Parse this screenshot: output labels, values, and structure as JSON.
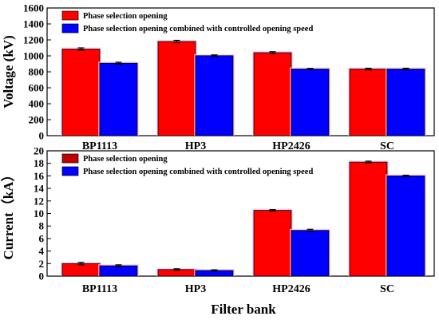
{
  "chart_data": [
    {
      "type": "bar",
      "categories": [
        "BP1113",
        "HP3",
        "HP2426",
        "SC"
      ],
      "series": [
        {
          "name": "Phase selection opening",
          "values": [
            1085,
            1180,
            1040,
            835
          ],
          "errors": [
            15,
            15,
            12,
            10
          ],
          "color": "#ff0000"
        },
        {
          "name": "Phase selection opening combined with controlled opening speed",
          "values": [
            908,
            1002,
            835,
            835
          ],
          "errors": [
            12,
            10,
            8,
            10
          ],
          "color": "#0000ff"
        }
      ],
      "xlabel": "",
      "ylabel": "Voltage (kV)",
      "ylim": [
        0,
        1600
      ],
      "yticks": [
        "0",
        "200",
        "400",
        "600",
        "800",
        "1000",
        "1200",
        "1400",
        "1600"
      ],
      "grid": false,
      "legend": "top-left",
      "error_bars": true
    },
    {
      "type": "bar",
      "categories": [
        "BP1113",
        "HP3",
        "HP2426",
        "SC"
      ],
      "series": [
        {
          "name": "Phase selection opening",
          "values": [
            2.0,
            1.05,
            10.5,
            18.2
          ],
          "errors": [
            0.2,
            0.12,
            0.12,
            0.15
          ],
          "color": "#ff0000"
        },
        {
          "name": "Phase selection opening combined with controlled opening speed",
          "values": [
            1.65,
            0.9,
            7.3,
            16.0
          ],
          "errors": [
            0.15,
            0.1,
            0.18,
            0.1
          ],
          "color": "#0000ff"
        }
      ],
      "xlabel": "Filter bank",
      "ylabel": "Current（kA）",
      "ylim": [
        0,
        20
      ],
      "yticks": [
        "0",
        "2",
        "4",
        "6",
        "8",
        "10",
        "12",
        "14",
        "16",
        "18",
        "20"
      ],
      "grid": false,
      "legend": "top-left",
      "legend_colors": [
        "#c00000",
        "#0000ff"
      ],
      "error_bars": true
    }
  ]
}
